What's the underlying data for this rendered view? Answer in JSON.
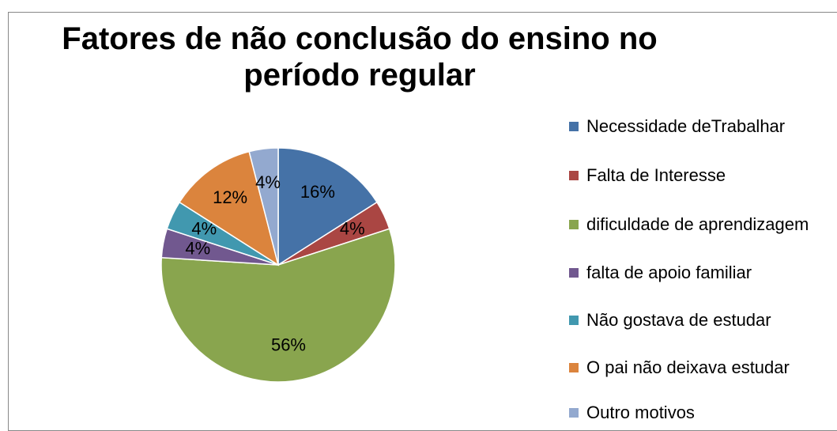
{
  "chart_data": {
    "type": "pie",
    "title": [
      "Fatores de não conclusão do ensino no",
      "período regular"
    ],
    "categories": [
      "Necessidade deTrabalhar",
      "Falta de Interesse",
      "dificuldade de aprendizagem",
      "falta de apoio familiar",
      "Não gostava de estudar",
      "O pai não deixava estudar",
      "Outro motivos"
    ],
    "values": [
      16,
      4,
      56,
      4,
      4,
      12,
      4
    ],
    "value_labels": [
      "16%",
      "4%",
      "56%",
      "4%",
      "4%",
      "12%",
      "4%"
    ],
    "colors": [
      "#4572a7",
      "#aa4643",
      "#89a54e",
      "#71588f",
      "#4198af",
      "#db843d",
      "#93a9cf"
    ],
    "legend": "right"
  }
}
